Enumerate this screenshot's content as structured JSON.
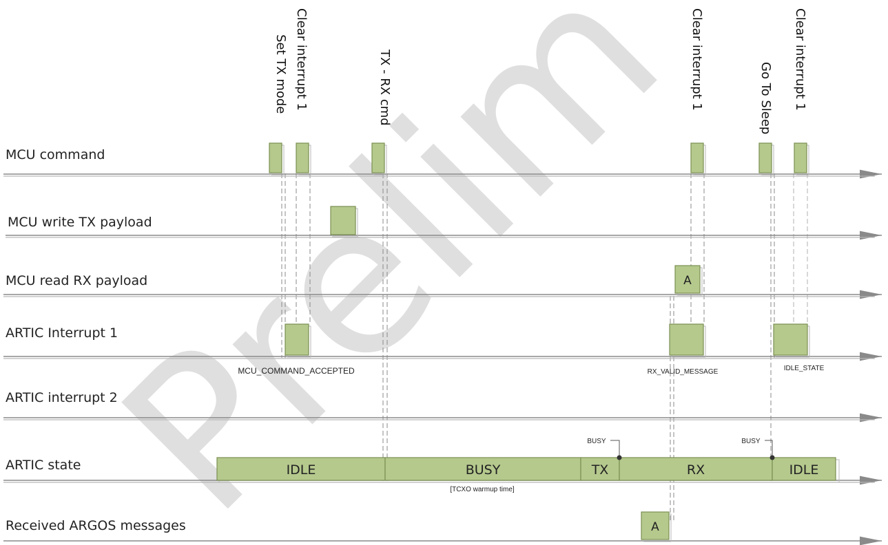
{
  "watermark": "Prelim",
  "lanes": [
    "MCU command",
    "MCU write TX payload",
    "MCU read RX payload",
    "ARTIC Interrupt 1",
    "ARTIC interrupt 2",
    "ARTIC state",
    "Received ARGOS messages"
  ],
  "commands": [
    "Set TX mode",
    "Clear interrupt 1",
    "TX - RX cmd",
    "Clear interrupt 1",
    "Go To Sleep",
    "Clear interrupt 1"
  ],
  "payload_labels": {
    "rx_read": "A",
    "argos_message": "A"
  },
  "interrupt_labels": [
    "MCU_COMMAND_ACCEPTED",
    "RX_VALID_MESSAGE",
    "IDLE_STATE"
  ],
  "states": [
    "IDLE",
    "BUSY",
    "TX",
    "RX",
    "IDLE"
  ],
  "state_notes": {
    "busy_sub": "[TCXO warmup time]",
    "busy_marker": "BUSY"
  },
  "colors": {
    "box_fill": "#b5c98d",
    "box_stroke": "#7a8f52",
    "axis": "#8a8a8a"
  }
}
